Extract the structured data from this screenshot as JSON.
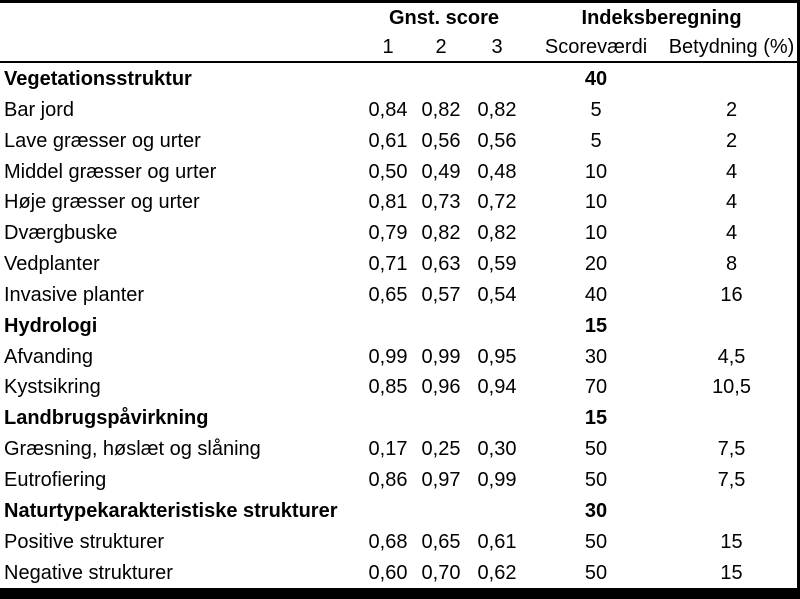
{
  "colors": {
    "text": "#000000",
    "background": "#ffffff",
    "border": "#000000"
  },
  "table": {
    "header": {
      "group1": "Gnst. score",
      "group2": "Indeksberegning",
      "sub": [
        "1",
        "2",
        "3",
        "Scoreværdi",
        "Betydning (%)"
      ]
    },
    "rows": [
      {
        "label": "Vegetationsstruktur",
        "bold": true,
        "s1": "",
        "s2": "",
        "s3": "",
        "scorevaerdi": "40",
        "betydning": ""
      },
      {
        "label": "Bar jord",
        "bold": false,
        "s1": "0,84",
        "s2": "0,82",
        "s3": "0,82",
        "scorevaerdi": "5",
        "betydning": "2"
      },
      {
        "label": "Lave græsser og urter",
        "bold": false,
        "s1": "0,61",
        "s2": "0,56",
        "s3": "0,56",
        "scorevaerdi": "5",
        "betydning": "2"
      },
      {
        "label": "Middel græsser og urter",
        "bold": false,
        "s1": "0,50",
        "s2": "0,49",
        "s3": "0,48",
        "scorevaerdi": "10",
        "betydning": "4"
      },
      {
        "label": "Høje græsser og urter",
        "bold": false,
        "s1": "0,81",
        "s2": "0,73",
        "s3": "0,72",
        "scorevaerdi": "10",
        "betydning": "4"
      },
      {
        "label": "Dværgbuske",
        "bold": false,
        "s1": "0,79",
        "s2": "0,82",
        "s3": "0,82",
        "scorevaerdi": "10",
        "betydning": "4"
      },
      {
        "label": "Vedplanter",
        "bold": false,
        "s1": "0,71",
        "s2": "0,63",
        "s3": "0,59",
        "scorevaerdi": "20",
        "betydning": "8"
      },
      {
        "label": "Invasive planter",
        "bold": false,
        "s1": "0,65",
        "s2": "0,57",
        "s3": "0,54",
        "scorevaerdi": "40",
        "betydning": "16"
      },
      {
        "label": "Hydrologi",
        "bold": true,
        "s1": "",
        "s2": "",
        "s3": "",
        "scorevaerdi": "15",
        "betydning": ""
      },
      {
        "label": "Afvanding",
        "bold": false,
        "s1": "0,99",
        "s2": "0,99",
        "s3": "0,95",
        "scorevaerdi": "30",
        "betydning": "4,5"
      },
      {
        "label": "Kystsikring",
        "bold": false,
        "s1": "0,85",
        "s2": "0,96",
        "s3": "0,94",
        "scorevaerdi": "70",
        "betydning": "10,5"
      },
      {
        "label": "Landbrugspåvirkning",
        "bold": true,
        "s1": "",
        "s2": "",
        "s3": "",
        "scorevaerdi": "15",
        "betydning": ""
      },
      {
        "label": "Græsning, høslæt og slåning",
        "bold": false,
        "s1": "0,17",
        "s2": "0,25",
        "s3": "0,30",
        "scorevaerdi": "50",
        "betydning": "7,5"
      },
      {
        "label": "Eutrofiering",
        "bold": false,
        "s1": "0,86",
        "s2": "0,97",
        "s3": "0,99",
        "scorevaerdi": "50",
        "betydning": "7,5"
      },
      {
        "label": "Naturtypekarakteristiske strukturer",
        "bold": true,
        "s1": "",
        "s2": "",
        "s3": "",
        "scorevaerdi": "30",
        "betydning": ""
      },
      {
        "label": "Positive strukturer",
        "bold": false,
        "s1": "0,68",
        "s2": "0,65",
        "s3": "0,61",
        "scorevaerdi": "50",
        "betydning": "15"
      },
      {
        "label": "Negative strukturer",
        "bold": false,
        "s1": "0,60",
        "s2": "0,70",
        "s3": "0,62",
        "scorevaerdi": "50",
        "betydning": "15"
      }
    ]
  }
}
